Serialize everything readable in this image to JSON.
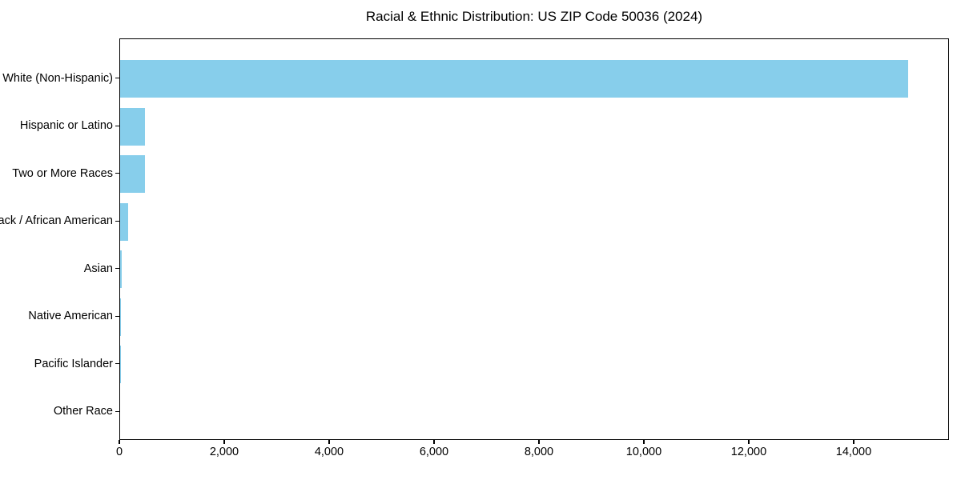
{
  "chart_data": {
    "type": "bar",
    "orientation": "horizontal",
    "title": "Racial & Ethnic Distribution: US ZIP Code 50036 (2024)",
    "categories": [
      "White (Non-Hispanic)",
      "Hispanic or Latino",
      "Two or More Races",
      "Black / African American",
      "Asian",
      "Native American",
      "Pacific Islander",
      "Other Race"
    ],
    "values": [
      15050,
      475,
      470,
      150,
      25,
      5,
      2,
      0
    ],
    "xlabel": "",
    "ylabel": "",
    "xlim": [
      0,
      15817
    ],
    "x_ticks": [
      0,
      2000,
      4000,
      6000,
      8000,
      10000,
      12000,
      14000
    ],
    "x_tick_labels": [
      "0",
      "2,000",
      "4,000",
      "6,000",
      "8,000",
      "10,000",
      "12,000",
      "14,000"
    ],
    "bar_color": "#87CEEB",
    "frame_color": "#000000",
    "text_color": "#000000",
    "grid": false,
    "legend": null
  }
}
